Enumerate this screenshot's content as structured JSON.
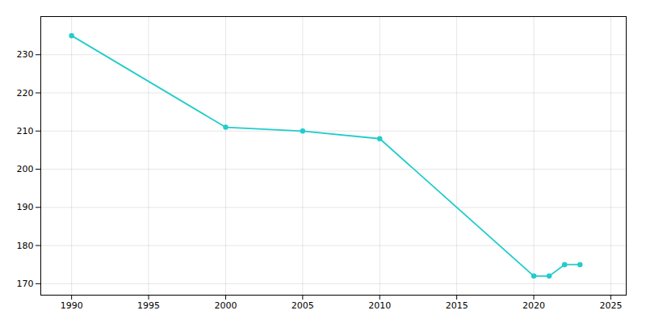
{
  "chart_data": {
    "type": "line",
    "x": [
      1990,
      2000,
      2005,
      2010,
      2020,
      2021,
      2022,
      2023
    ],
    "values": [
      235,
      211,
      210,
      208,
      172,
      172,
      175,
      175
    ],
    "color": "#22CCCC",
    "marker": "circle",
    "xlim": [
      1988,
      2026
    ],
    "ylim": [
      167,
      240
    ],
    "xticks": [
      1990,
      1995,
      2000,
      2005,
      2010,
      2015,
      2020,
      2025
    ],
    "yticks": [
      170,
      180,
      190,
      200,
      210,
      220,
      230
    ],
    "grid": true
  }
}
